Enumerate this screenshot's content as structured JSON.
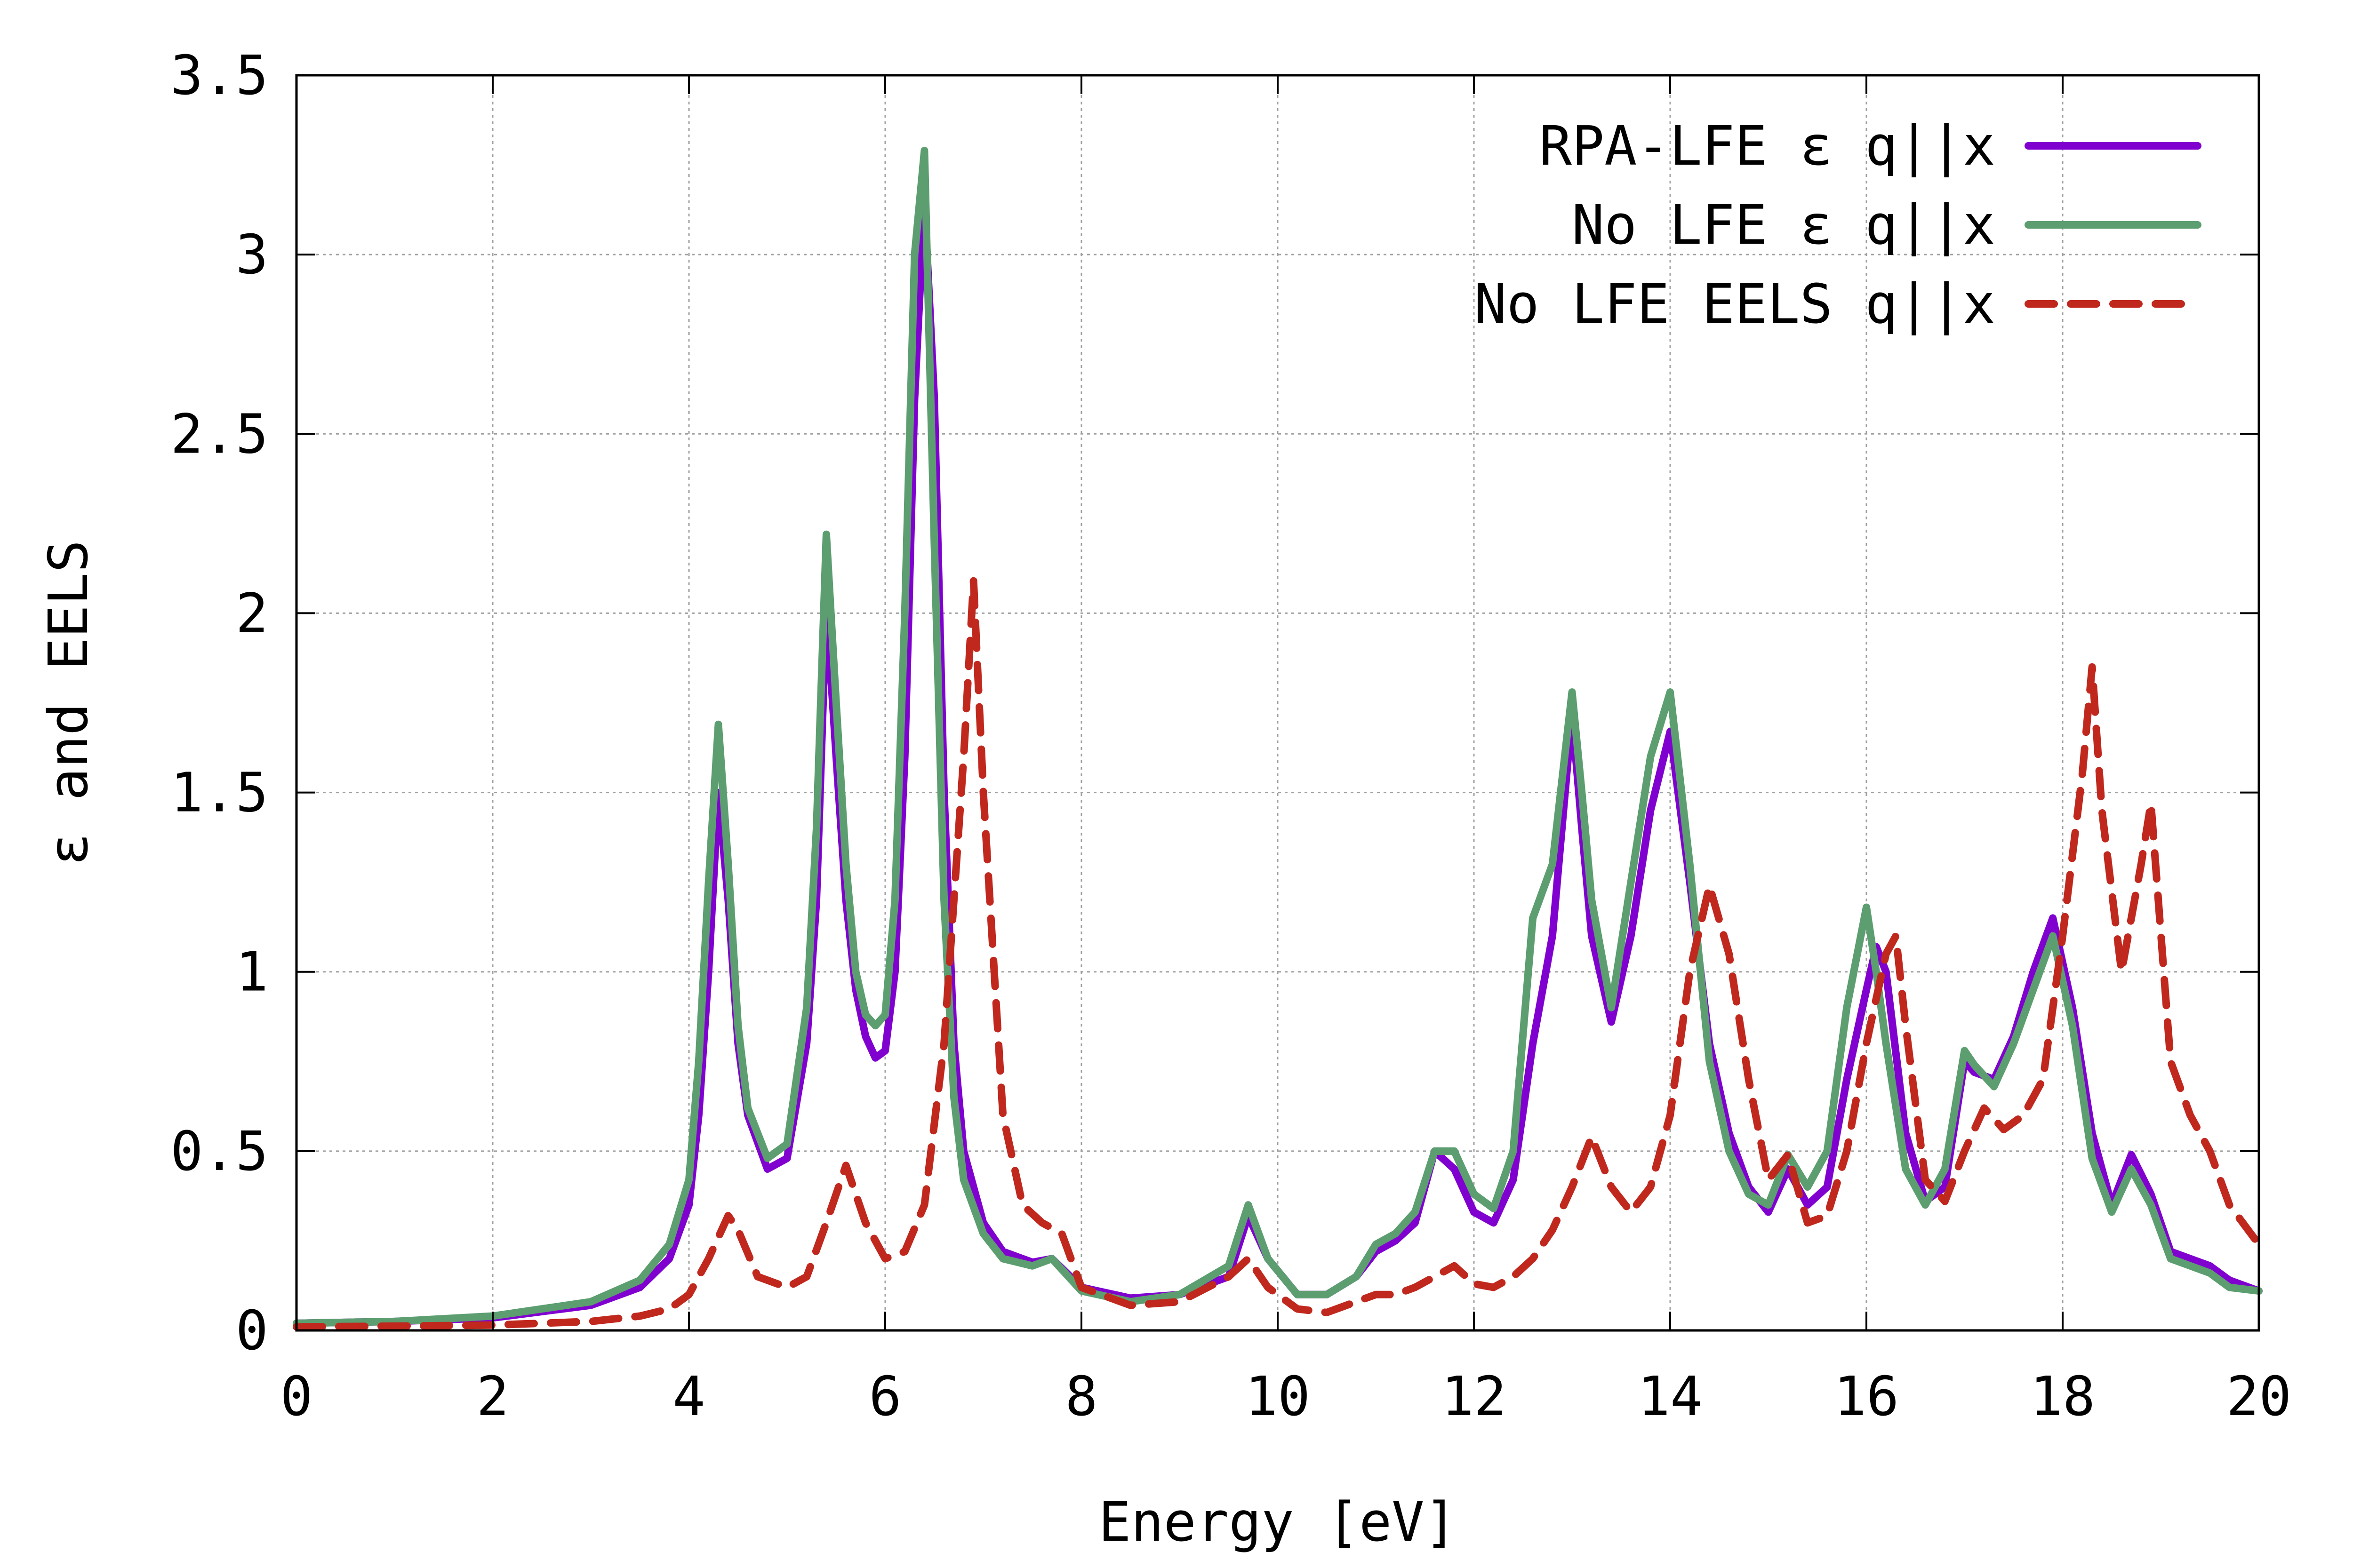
{
  "chart_data": {
    "type": "line",
    "title": "",
    "xlabel": "Energy [eV]",
    "ylabel": "ε and EELS",
    "xlim": [
      0,
      20
    ],
    "ylim": [
      0,
      3.5
    ],
    "grid": true,
    "legend_position": "top-right",
    "x_ticks": [
      {
        "value": 0,
        "label": "0"
      },
      {
        "value": 2,
        "label": "2"
      },
      {
        "value": 4,
        "label": "4"
      },
      {
        "value": 6,
        "label": "6"
      },
      {
        "value": 8,
        "label": "8"
      },
      {
        "value": 10,
        "label": "10"
      },
      {
        "value": 12,
        "label": "12"
      },
      {
        "value": 14,
        "label": "14"
      },
      {
        "value": 16,
        "label": "16"
      },
      {
        "value": 18,
        "label": "18"
      },
      {
        "value": 20,
        "label": "20"
      }
    ],
    "y_ticks": [
      {
        "value": 0,
        "label": "0"
      },
      {
        "value": 0.5,
        "label": "0.5"
      },
      {
        "value": 1,
        "label": "1"
      },
      {
        "value": 1.5,
        "label": "1.5"
      },
      {
        "value": 2,
        "label": "2"
      },
      {
        "value": 2.5,
        "label": "2.5"
      },
      {
        "value": 3,
        "label": "3"
      },
      {
        "value": 3.5,
        "label": "3.5"
      }
    ],
    "series": [
      {
        "name": "RPA-LFE ε q||x",
        "color": "#8000d0",
        "dash": "solid",
        "x": [
          0,
          1,
          2,
          3,
          3.5,
          3.8,
          4,
          4.1,
          4.2,
          4.3,
          4.4,
          4.5,
          4.6,
          4.8,
          5,
          5.2,
          5.3,
          5.4,
          5.5,
          5.6,
          5.7,
          5.8,
          5.9,
          6,
          6.1,
          6.2,
          6.3,
          6.4,
          6.5,
          6.6,
          6.7,
          6.8,
          7,
          7.2,
          7.5,
          7.7,
          8,
          8.5,
          9,
          9.5,
          9.7,
          9.9,
          10.2,
          10.5,
          10.8,
          11,
          11.2,
          11.4,
          11.6,
          11.8,
          12,
          12.2,
          12.4,
          12.6,
          12.8,
          13,
          13.1,
          13.2,
          13.4,
          13.6,
          13.8,
          14,
          14.2,
          14.4,
          14.6,
          14.8,
          15,
          15.2,
          15.4,
          15.6,
          15.8,
          16,
          16.1,
          16.2,
          16.4,
          16.6,
          16.8,
          17,
          17.1,
          17.3,
          17.5,
          17.7,
          17.9,
          18.1,
          18.3,
          18.5,
          18.7,
          18.9,
          19.1,
          19.3,
          19.5,
          19.7,
          20
        ],
        "values": [
          0.02,
          0.025,
          0.035,
          0.07,
          0.12,
          0.2,
          0.35,
          0.6,
          1.0,
          1.5,
          1.2,
          0.8,
          0.6,
          0.45,
          0.48,
          0.8,
          1.2,
          2.02,
          1.6,
          1.2,
          0.95,
          0.82,
          0.76,
          0.78,
          1.0,
          1.6,
          2.6,
          3.15,
          2.6,
          1.5,
          0.8,
          0.5,
          0.3,
          0.22,
          0.19,
          0.2,
          0.12,
          0.09,
          0.1,
          0.15,
          0.32,
          0.2,
          0.1,
          0.1,
          0.15,
          0.22,
          0.25,
          0.3,
          0.5,
          0.45,
          0.33,
          0.3,
          0.42,
          0.8,
          1.1,
          1.72,
          1.4,
          1.1,
          0.86,
          1.1,
          1.45,
          1.67,
          1.25,
          0.8,
          0.55,
          0.4,
          0.33,
          0.45,
          0.35,
          0.4,
          0.7,
          0.95,
          1.07,
          1.0,
          0.55,
          0.36,
          0.4,
          0.75,
          0.72,
          0.7,
          0.82,
          1.0,
          1.15,
          0.9,
          0.55,
          0.35,
          0.49,
          0.38,
          0.22,
          0.2,
          0.18,
          0.14,
          0.11
        ]
      },
      {
        "name": "No LFE ε q||x",
        "color": "#5c9e70",
        "dash": "solid",
        "x": [
          0,
          1,
          2,
          3,
          3.5,
          3.8,
          4,
          4.1,
          4.2,
          4.3,
          4.4,
          4.5,
          4.6,
          4.8,
          5,
          5.2,
          5.3,
          5.4,
          5.5,
          5.6,
          5.7,
          5.8,
          5.9,
          6,
          6.1,
          6.2,
          6.3,
          6.4,
          6.5,
          6.6,
          6.7,
          6.8,
          7,
          7.2,
          7.5,
          7.7,
          8,
          8.5,
          9,
          9.5,
          9.7,
          9.9,
          10.2,
          10.5,
          10.8,
          11,
          11.2,
          11.4,
          11.6,
          11.8,
          12,
          12.2,
          12.4,
          12.6,
          12.8,
          13,
          13.1,
          13.2,
          13.4,
          13.6,
          13.8,
          14,
          14.2,
          14.4,
          14.6,
          14.8,
          15,
          15.2,
          15.4,
          15.6,
          15.8,
          16,
          16.1,
          16.2,
          16.4,
          16.6,
          16.8,
          17,
          17.1,
          17.3,
          17.5,
          17.7,
          17.9,
          18.1,
          18.3,
          18.5,
          18.7,
          18.9,
          19.1,
          19.3,
          19.5,
          19.7,
          20
        ],
        "values": [
          0.02,
          0.025,
          0.04,
          0.08,
          0.14,
          0.24,
          0.42,
          0.75,
          1.25,
          1.69,
          1.3,
          0.85,
          0.62,
          0.48,
          0.52,
          0.9,
          1.4,
          2.22,
          1.75,
          1.3,
          1.0,
          0.88,
          0.85,
          0.88,
          1.2,
          2.0,
          3.0,
          3.29,
          2.2,
          1.2,
          0.65,
          0.42,
          0.27,
          0.2,
          0.18,
          0.2,
          0.11,
          0.08,
          0.1,
          0.18,
          0.35,
          0.2,
          0.1,
          0.1,
          0.15,
          0.24,
          0.27,
          0.33,
          0.5,
          0.5,
          0.38,
          0.34,
          0.5,
          1.15,
          1.3,
          1.78,
          1.5,
          1.2,
          0.9,
          1.25,
          1.6,
          1.78,
          1.3,
          0.75,
          0.5,
          0.38,
          0.35,
          0.49,
          0.4,
          0.5,
          0.9,
          1.18,
          1.0,
          0.8,
          0.45,
          0.35,
          0.45,
          0.78,
          0.74,
          0.68,
          0.8,
          0.95,
          1.1,
          0.85,
          0.48,
          0.33,
          0.45,
          0.35,
          0.2,
          0.18,
          0.16,
          0.12,
          0.11
        ]
      },
      {
        "name": "No LFE EELS q||x",
        "color": "#c0281e",
        "dash": "dashed",
        "x": [
          0,
          1,
          2,
          3,
          3.5,
          3.8,
          4,
          4.2,
          4.4,
          4.5,
          4.7,
          5,
          5.2,
          5.4,
          5.6,
          5.8,
          6,
          6.2,
          6.4,
          6.6,
          6.8,
          6.9,
          7,
          7.2,
          7.4,
          7.6,
          7.8,
          8,
          8.5,
          9,
          9.5,
          9.7,
          9.9,
          10.2,
          10.5,
          10.8,
          11,
          11.2,
          11.4,
          11.6,
          11.8,
          12,
          12.2,
          12.4,
          12.6,
          12.8,
          13,
          13.2,
          13.4,
          13.6,
          13.8,
          14,
          14.2,
          14.4,
          14.6,
          14.8,
          15,
          15.2,
          15.4,
          15.6,
          15.8,
          16,
          16.2,
          16.3,
          16.4,
          16.6,
          16.8,
          17,
          17.2,
          17.4,
          17.6,
          17.8,
          18,
          18.2,
          18.3,
          18.4,
          18.6,
          18.8,
          18.9,
          19.1,
          19.3,
          19.5,
          19.7,
          20
        ],
        "values": [
          0.01,
          0.012,
          0.015,
          0.025,
          0.04,
          0.06,
          0.1,
          0.2,
          0.32,
          0.28,
          0.15,
          0.12,
          0.15,
          0.3,
          0.46,
          0.3,
          0.2,
          0.22,
          0.35,
          0.8,
          1.6,
          2.09,
          1.5,
          0.6,
          0.35,
          0.3,
          0.27,
          0.12,
          0.07,
          0.08,
          0.15,
          0.2,
          0.12,
          0.06,
          0.05,
          0.08,
          0.1,
          0.1,
          0.12,
          0.15,
          0.18,
          0.13,
          0.12,
          0.15,
          0.2,
          0.28,
          0.4,
          0.54,
          0.4,
          0.33,
          0.4,
          0.6,
          1.0,
          1.24,
          1.05,
          0.7,
          0.42,
          0.49,
          0.3,
          0.32,
          0.5,
          0.8,
          1.05,
          1.1,
          0.85,
          0.42,
          0.36,
          0.5,
          0.62,
          0.56,
          0.6,
          0.7,
          1.1,
          1.55,
          1.85,
          1.45,
          1.0,
          1.3,
          1.47,
          0.75,
          0.6,
          0.5,
          0.35,
          0.24
        ]
      }
    ]
  }
}
